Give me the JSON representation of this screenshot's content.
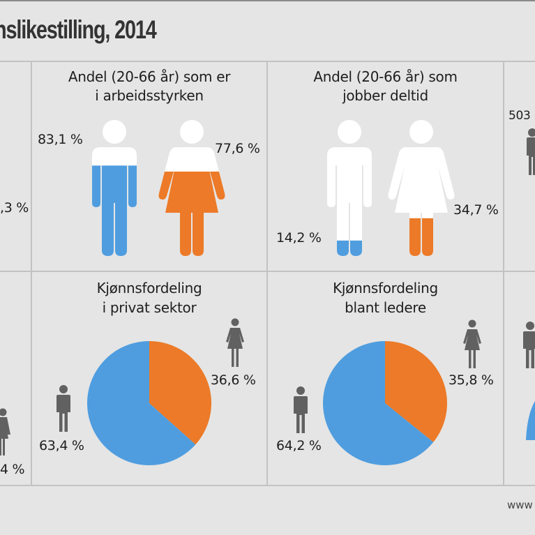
{
  "header": {
    "title": "nslikestilling, 2014"
  },
  "colors": {
    "male": "#4f9ddf",
    "female": "#ec7a28",
    "empty": "#ffffff",
    "icon_gray": "#616161",
    "background": "#e5e5e5"
  },
  "panels": {
    "left_top_partial": {
      "value_label": ",3 %"
    },
    "labor_force": {
      "title_line1": "Andel (20-66 år) som er",
      "title_line2": "i arbeidsstyrken",
      "male_label": "83,1 %",
      "female_label": "77,6 %",
      "male_value": 83.1,
      "female_value": 77.6
    },
    "part_time": {
      "title_line1": "Andel (20-66 år) som",
      "title_line2": "jobber deltid",
      "male_label": "14,2 %",
      "female_label": "34,7 %",
      "male_value": 14.2,
      "female_value": 34.7
    },
    "right_top_partial": {
      "value_label": "503"
    },
    "left_bottom_partial": {
      "value_label": "4 %"
    },
    "private_sector": {
      "title_line1": "Kjønnsfordeling",
      "title_line2": "i privat sektor",
      "male_label": "63,4 %",
      "female_label": "36,6 %"
    },
    "leaders": {
      "title_line1": "Kjønnsfordeling",
      "title_line2": "blant ledere",
      "male_label": "64,2 %",
      "female_label": "35,8 %"
    }
  },
  "footer": {
    "url_fragment": "www"
  },
  "chart_data": [
    {
      "type": "pie",
      "title": "Kjønnsfordeling i privat sektor",
      "categories": [
        "Menn",
        "Kvinner"
      ],
      "values": [
        63.4,
        36.6
      ],
      "labels": [
        "63,4 %",
        "36,6 %"
      ]
    },
    {
      "type": "pie",
      "title": "Kjønnsfordeling blant ledere",
      "categories": [
        "Menn",
        "Kvinner"
      ],
      "values": [
        64.2,
        35.8
      ],
      "labels": [
        "64,2 %",
        "35,8 %"
      ]
    },
    {
      "type": "bar",
      "title": "Andel (20-66 år) som er i arbeidsstyrken",
      "categories": [
        "Menn",
        "Kvinner"
      ],
      "values": [
        83.1,
        77.6
      ],
      "ylim": [
        0,
        100
      ]
    },
    {
      "type": "bar",
      "title": "Andel (20-66 år) som jobber deltid",
      "categories": [
        "Menn",
        "Kvinner"
      ],
      "values": [
        14.2,
        34.7
      ],
      "ylim": [
        0,
        100
      ]
    }
  ]
}
